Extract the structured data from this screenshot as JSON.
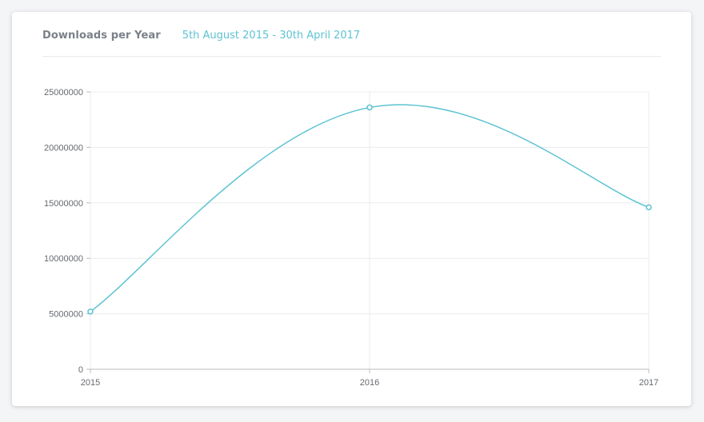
{
  "panel": {
    "title": "Downloads per Year",
    "date_range": "5th August 2015 - 30th April 2017"
  },
  "colors": {
    "accent": "#5cc3d2",
    "grid": "#e9ebee",
    "axis": "#b9bcc2"
  },
  "chart_data": {
    "type": "line",
    "title": "Downloads per Year",
    "subtitle": "5th August 2015 - 30th April 2017",
    "xlabel": "",
    "ylabel": "",
    "categories": [
      "2015",
      "2016",
      "2017"
    ],
    "series": [
      {
        "values": [
          5200000,
          23600000,
          14600000
        ]
      }
    ],
    "ylim": [
      0,
      25000000
    ],
    "yticks": [
      0,
      5000000,
      10000000,
      15000000,
      20000000,
      25000000
    ],
    "ytick_labels": [
      "0",
      "5000000",
      "10000000",
      "15000000",
      "20000000",
      "25000000"
    ],
    "grid": true,
    "legend": "none",
    "smooth": true
  }
}
